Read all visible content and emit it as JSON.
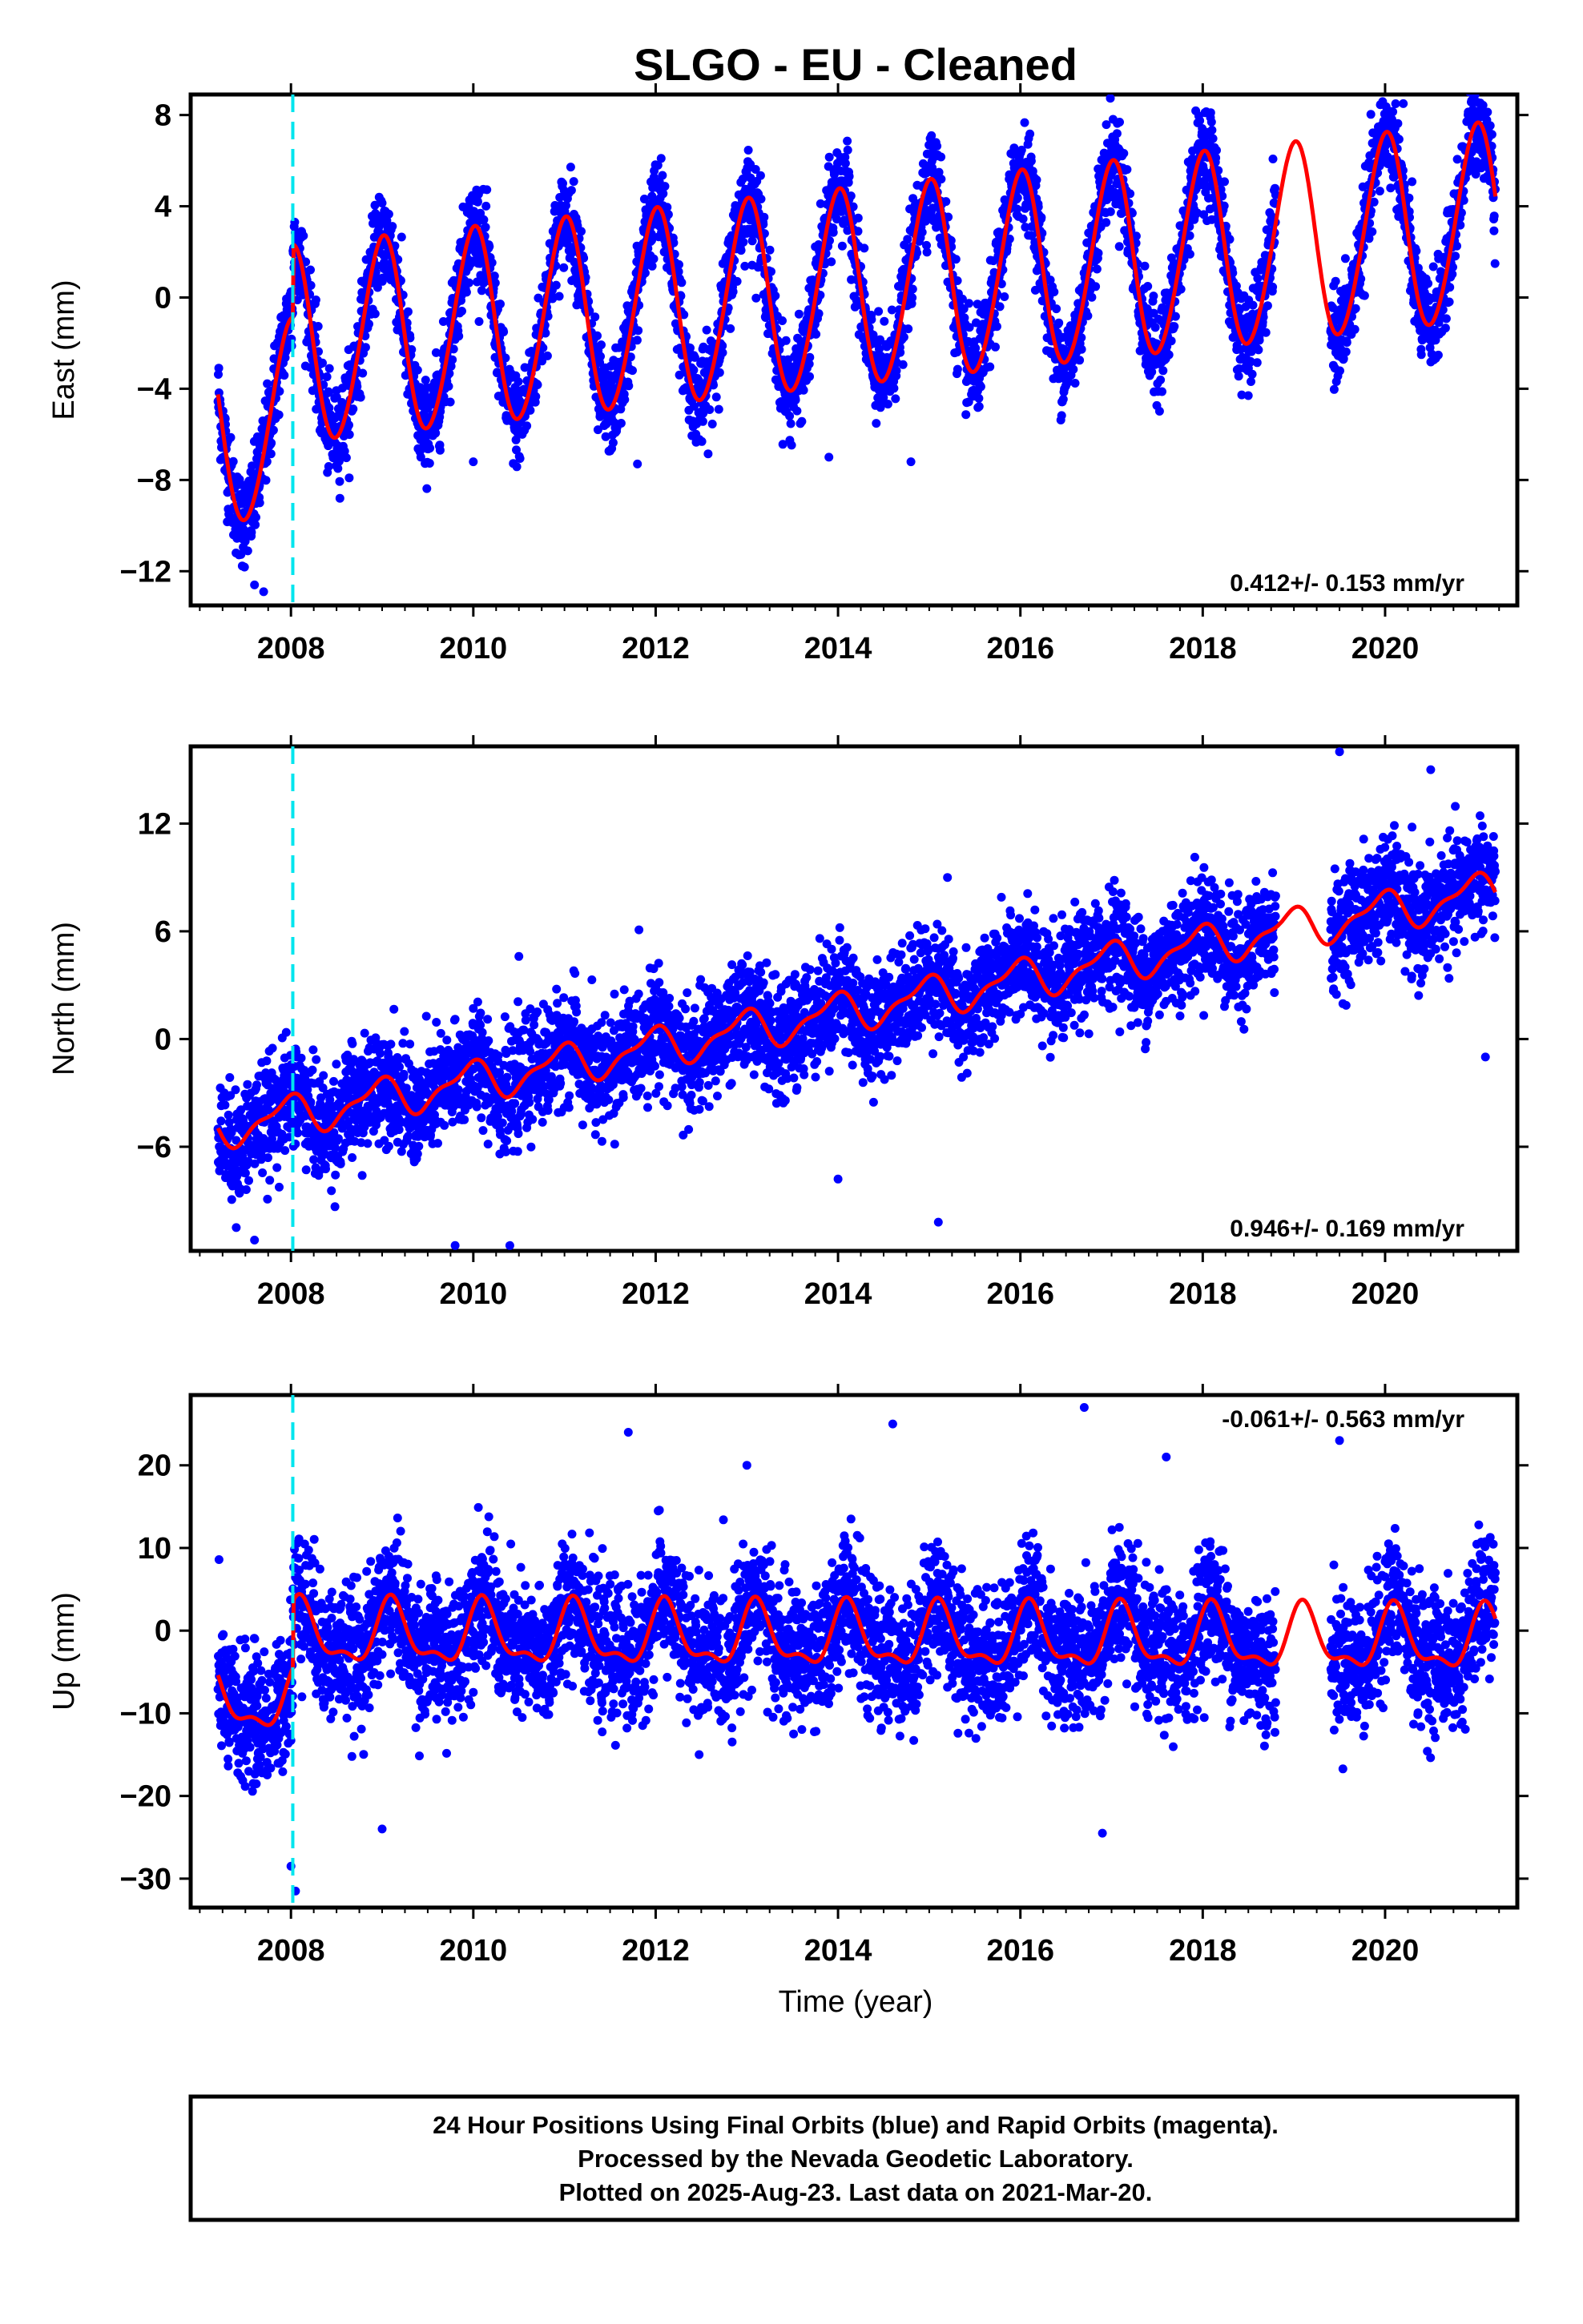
{
  "chart_data": {
    "type": "scatter",
    "title": "SLGO  - EU - Cleaned",
    "xlabel": "Time (year)",
    "xlim": [
      2006.9,
      2021.45
    ],
    "xticks": [
      2008,
      2010,
      2012,
      2014,
      2016,
      2018,
      2020
    ],
    "xtick_labels": [
      "2008",
      "2010",
      "2012",
      "2014",
      "2016",
      "2018",
      "2020"
    ],
    "data_range": [
      2007.2,
      2021.21
    ],
    "event_line_x": 2008.02,
    "colors": {
      "points": "#0000ff",
      "fit": "#ff0000",
      "event_line": "#00e5ee"
    },
    "panels": [
      {
        "ylabel": "East (mm)",
        "ylim": [
          -13.5,
          8.9
        ],
        "yticks": [
          -12,
          -8,
          -4,
          0,
          4,
          8
        ],
        "ytick_labels": [
          "−12",
          "−8",
          "−4",
          "0",
          "4",
          "8"
        ],
        "rate": "0.412+/- 0.153 mm/yr",
        "rate_position": "bottom-right",
        "model": {
          "offset": -2.5,
          "trend": 0.412,
          "annual_amp": 4.3,
          "annual_phase": 1.55,
          "early_offset": -3.2,
          "semi_amp": 0.3,
          "noise": 1.0
        },
        "outliers": [
          [
            2007.6,
            -12.6
          ],
          [
            2007.7,
            -12.9
          ],
          [
            2010.0,
            -7.2
          ],
          [
            2011.8,
            -7.3
          ],
          [
            2013.9,
            -7.0
          ],
          [
            2014.8,
            -7.2
          ],
          [
            2018.5,
            -4.3
          ],
          [
            2020.2,
            8.5
          ]
        ]
      },
      {
        "ylabel": "North (mm)",
        "ylim": [
          -11.8,
          16.3
        ],
        "yticks": [
          -6,
          0,
          6,
          12
        ],
        "ytick_labels": [
          "−6",
          "0",
          "6",
          "12"
        ],
        "rate": "0.946+/- 0.169 mm/yr",
        "rate_position": "bottom-right",
        "model": {
          "offset": -5.0,
          "trend": 0.946,
          "annual_amp": 1.0,
          "annual_phase": 1.9,
          "early_offset": 0.0,
          "semi_amp": 0.4,
          "noise": 1.5
        },
        "outliers": [
          [
            2007.4,
            -10.5
          ],
          [
            2007.6,
            -11.2
          ],
          [
            2009.8,
            -11.5
          ],
          [
            2010.5,
            4.6
          ],
          [
            2010.4,
            -11.5
          ],
          [
            2011.3,
            3.3
          ],
          [
            2013.8,
            5.6
          ],
          [
            2014.0,
            -7.8
          ],
          [
            2015.1,
            -10.2
          ],
          [
            2015.2,
            9.0
          ],
          [
            2019.5,
            16.0
          ],
          [
            2020.5,
            15.0
          ],
          [
            2021.1,
            -1.0
          ]
        ]
      },
      {
        "ylabel": "Up (mm)",
        "ylim": [
          -33.5,
          28.5
        ],
        "yticks": [
          -30,
          -20,
          -10,
          0,
          10,
          20
        ],
        "ytick_labels": [
          "−30",
          "−20",
          "−10",
          "0",
          "10",
          "20"
        ],
        "rate": "-0.061+/- 0.563 mm/yr",
        "rate_position": "top-right",
        "model": {
          "offset": -0.5,
          "trend": -0.061,
          "annual_amp": 3.5,
          "annual_phase": 0.9,
          "early_offset": -8.0,
          "semi_amp": 1.5,
          "noise": 4.0
        },
        "outliers": [
          [
            2008.0,
            -28.5
          ],
          [
            2008.05,
            -31.5
          ],
          [
            2009.0,
            -24.0
          ],
          [
            2011.7,
            24.0
          ],
          [
            2014.6,
            25.0
          ],
          [
            2016.7,
            27.0
          ],
          [
            2016.9,
            -24.5
          ],
          [
            2019.5,
            23.0
          ],
          [
            2013.0,
            20.0
          ],
          [
            2017.6,
            21.0
          ]
        ]
      }
    ]
  },
  "footer": {
    "line1": "24 Hour Positions Using Final Orbits (blue) and Rapid Orbits (magenta).",
    "line2": "Processed by the Nevada Geodetic Laboratory.",
    "line3": "Plotted on 2025-Aug-23. Last data on 2021-Mar-20."
  }
}
